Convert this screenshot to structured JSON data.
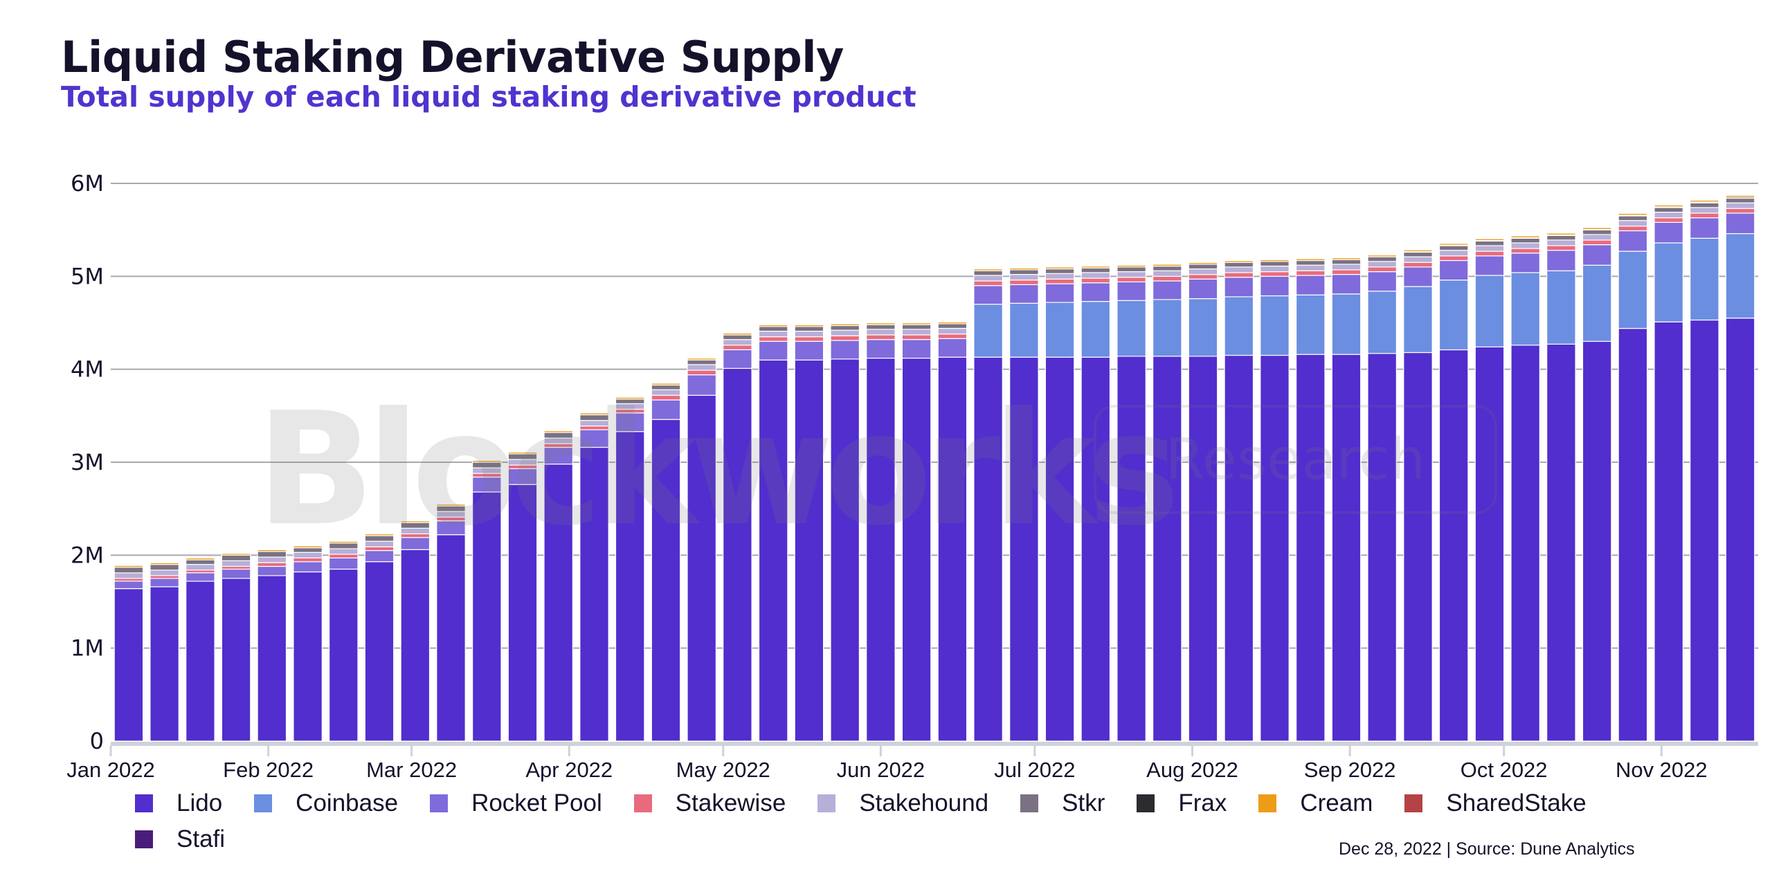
{
  "header": {
    "title": "Liquid Staking Derivative Supply",
    "subtitle": "Total supply of each liquid staking derivative product"
  },
  "watermark": {
    "brand": "Blockworks",
    "tag": "Research"
  },
  "footer": {
    "text": "Dec 28, 2022 | Source: Dune Analytics"
  },
  "chart_data": {
    "type": "bar",
    "stacked": true,
    "title": "Liquid Staking Derivative Supply",
    "subtitle": "Total supply of each liquid staking derivative product",
    "xlabel": "",
    "ylabel": "",
    "ylim": [
      0,
      6000000
    ],
    "yticks": [
      0,
      1000000,
      2000000,
      3000000,
      4000000,
      5000000,
      6000000
    ],
    "ytick_labels": [
      "0",
      "1M",
      "2M",
      "3M",
      "4M",
      "5M",
      "6M"
    ],
    "xtick_labels": [
      "Jan 2022",
      "Feb 2022",
      "Mar 2022",
      "Apr 2022",
      "May 2022",
      "Jun 2022",
      "Jul 2022",
      "Aug 2022",
      "Sep 2022",
      "Oct 2022",
      "Nov 2022"
    ],
    "xtick_bar_index": [
      0,
      4.4,
      8.4,
      12.8,
      17.1,
      21.5,
      25.8,
      30.2,
      34.6,
      38.9,
      43.3
    ],
    "grid": true,
    "legend_position": "bottom",
    "interval": "weekly",
    "bar_count": 46,
    "series": [
      {
        "name": "Lido",
        "color": "#512ecd",
        "values": [
          1.64,
          1.66,
          1.72,
          1.75,
          1.78,
          1.82,
          1.85,
          1.93,
          2.06,
          2.22,
          2.68,
          2.76,
          2.98,
          3.16,
          3.33,
          3.46,
          3.72,
          4.01,
          4.1,
          4.1,
          4.11,
          4.12,
          4.12,
          4.13,
          4.13,
          4.13,
          4.13,
          4.13,
          4.14,
          4.14,
          4.14,
          4.15,
          4.15,
          4.16,
          4.16,
          4.17,
          4.18,
          4.21,
          4.24,
          4.26,
          4.27,
          4.3,
          4.44,
          4.51,
          4.53,
          4.55
        ]
      },
      {
        "name": "Coinbase",
        "color": "#6b8ee0",
        "values": [
          0,
          0,
          0,
          0,
          0,
          0,
          0,
          0,
          0,
          0,
          0,
          0,
          0,
          0,
          0,
          0,
          0,
          0,
          0,
          0,
          0,
          0,
          0,
          0,
          0.57,
          0.58,
          0.59,
          0.6,
          0.6,
          0.61,
          0.62,
          0.63,
          0.64,
          0.64,
          0.65,
          0.67,
          0.71,
          0.75,
          0.77,
          0.78,
          0.79,
          0.82,
          0.83,
          0.85,
          0.88,
          0.91
        ]
      },
      {
        "name": "Rocket Pool",
        "color": "#7f6bdb",
        "values": [
          0.08,
          0.09,
          0.09,
          0.1,
          0.1,
          0.11,
          0.12,
          0.12,
          0.13,
          0.15,
          0.16,
          0.17,
          0.18,
          0.19,
          0.2,
          0.21,
          0.22,
          0.2,
          0.2,
          0.2,
          0.2,
          0.2,
          0.2,
          0.2,
          0.2,
          0.2,
          0.2,
          0.2,
          0.2,
          0.2,
          0.21,
          0.21,
          0.21,
          0.21,
          0.21,
          0.21,
          0.21,
          0.21,
          0.21,
          0.21,
          0.22,
          0.22,
          0.22,
          0.22,
          0.22,
          0.22
        ]
      },
      {
        "name": "Stakewise",
        "color": "#e86b7d",
        "values": [
          0.03,
          0.03,
          0.03,
          0.03,
          0.04,
          0.04,
          0.04,
          0.04,
          0.04,
          0.04,
          0.04,
          0.04,
          0.04,
          0.04,
          0.04,
          0.05,
          0.05,
          0.05,
          0.05,
          0.05,
          0.05,
          0.05,
          0.05,
          0.05,
          0.05,
          0.05,
          0.05,
          0.05,
          0.05,
          0.05,
          0.05,
          0.05,
          0.05,
          0.05,
          0.05,
          0.05,
          0.05,
          0.05,
          0.05,
          0.05,
          0.05,
          0.05,
          0.05,
          0.05,
          0.05,
          0.05
        ]
      },
      {
        "name": "Stakehound",
        "color": "#b7afd8",
        "values": [
          0.06,
          0.06,
          0.06,
          0.06,
          0.06,
          0.06,
          0.06,
          0.06,
          0.06,
          0.06,
          0.06,
          0.06,
          0.06,
          0.06,
          0.06,
          0.06,
          0.06,
          0.06,
          0.06,
          0.06,
          0.06,
          0.06,
          0.06,
          0.06,
          0.06,
          0.06,
          0.06,
          0.06,
          0.06,
          0.06,
          0.06,
          0.06,
          0.06,
          0.06,
          0.06,
          0.06,
          0.06,
          0.06,
          0.06,
          0.06,
          0.06,
          0.06,
          0.06,
          0.06,
          0.06,
          0.06
        ]
      },
      {
        "name": "Stkr",
        "color": "#7a7282",
        "values": [
          0.06,
          0.06,
          0.05,
          0.06,
          0.06,
          0.05,
          0.06,
          0.06,
          0.06,
          0.06,
          0.06,
          0.06,
          0.06,
          0.06,
          0.05,
          0.05,
          0.05,
          0.05,
          0.05,
          0.05,
          0.05,
          0.05,
          0.05,
          0.05,
          0.05,
          0.05,
          0.05,
          0.05,
          0.05,
          0.05,
          0.05,
          0.05,
          0.05,
          0.05,
          0.05,
          0.05,
          0.05,
          0.05,
          0.05,
          0.05,
          0.05,
          0.05,
          0.05,
          0.05,
          0.05,
          0.05
        ]
      },
      {
        "name": "Frax",
        "color": "#2b2b30",
        "values": [
          0,
          0,
          0,
          0,
          0,
          0,
          0,
          0,
          0,
          0,
          0,
          0,
          0,
          0,
          0,
          0,
          0,
          0,
          0,
          0,
          0,
          0,
          0,
          0,
          0,
          0,
          0,
          0,
          0,
          0,
          0,
          0,
          0,
          0,
          0,
          0,
          0.005,
          0.005,
          0.005,
          0.005,
          0.005,
          0.005,
          0.008,
          0.008,
          0.01,
          0.012
        ]
      },
      {
        "name": "Cream",
        "color": "#ee9c18",
        "values": [
          0.02,
          0.02,
          0.02,
          0.02,
          0.02,
          0.02,
          0.02,
          0.02,
          0.02,
          0.02,
          0.02,
          0.02,
          0.02,
          0.02,
          0.02,
          0.02,
          0.02,
          0.02,
          0.02,
          0.02,
          0.02,
          0.02,
          0.02,
          0.02,
          0.02,
          0.02,
          0.02,
          0.02,
          0.02,
          0.02,
          0.02,
          0.02,
          0.02,
          0.02,
          0.02,
          0.02,
          0.02,
          0.02,
          0.02,
          0.02,
          0.02,
          0.02,
          0.02,
          0.02,
          0.02,
          0.02
        ]
      },
      {
        "name": "SharedStake",
        "color": "#b34344",
        "values": [
          0.005,
          0.005,
          0.005,
          0.005,
          0.005,
          0.005,
          0.005,
          0.005,
          0.005,
          0.005,
          0.005,
          0.005,
          0.005,
          0.005,
          0.005,
          0.005,
          0.005,
          0.005,
          0.005,
          0.005,
          0.005,
          0.005,
          0.005,
          0.005,
          0.005,
          0.005,
          0.005,
          0.005,
          0.005,
          0.005,
          0.005,
          0.005,
          0.005,
          0.005,
          0.005,
          0.005,
          0.005,
          0.005,
          0.005,
          0.005,
          0.005,
          0.005,
          0.005,
          0.005,
          0.005,
          0.005
        ]
      },
      {
        "name": "Stafi",
        "color": "#4a1c7a",
        "values": [
          0.003,
          0.003,
          0.003,
          0.003,
          0.003,
          0.003,
          0.003,
          0.003,
          0.003,
          0.003,
          0.003,
          0.003,
          0.003,
          0.003,
          0.003,
          0.003,
          0.003,
          0.003,
          0.003,
          0.003,
          0.003,
          0.003,
          0.003,
          0.003,
          0.003,
          0.003,
          0.003,
          0.003,
          0.003,
          0.003,
          0.003,
          0.003,
          0.003,
          0.003,
          0.003,
          0.003,
          0.003,
          0.003,
          0.003,
          0.003,
          0.003,
          0.003,
          0.003,
          0.003,
          0.003,
          0.003
        ]
      }
    ],
    "value_unit": "millions"
  },
  "legend": {
    "items": [
      {
        "label": "Lido",
        "color": "#512ecd"
      },
      {
        "label": "Coinbase",
        "color": "#6b8ee0"
      },
      {
        "label": "Rocket Pool",
        "color": "#7f6bdb"
      },
      {
        "label": "Stakewise",
        "color": "#e86b7d"
      },
      {
        "label": "Stakehound",
        "color": "#b7afd8"
      },
      {
        "label": "Stkr",
        "color": "#7a7282"
      },
      {
        "label": "Frax",
        "color": "#2b2b30"
      },
      {
        "label": "Cream",
        "color": "#ee9c18"
      },
      {
        "label": "SharedStake",
        "color": "#b34344"
      },
      {
        "label": "Stafi",
        "color": "#4a1c7a"
      }
    ]
  }
}
